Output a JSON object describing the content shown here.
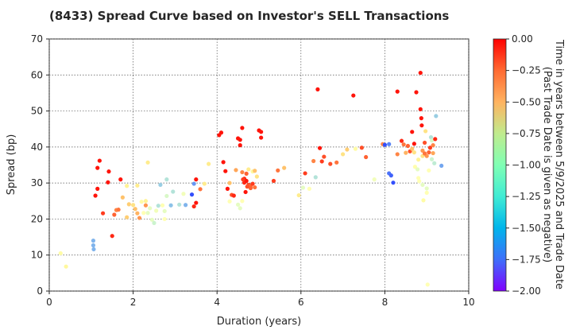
{
  "chart_data": {
    "type": "scatter",
    "title": "(8433)   Spread Curve based on Investor's SELL Transactions",
    "xlabel": "Duration (years)",
    "ylabel": "Spread (bp)",
    "xlim": [
      0,
      10
    ],
    "ylim": [
      0,
      70
    ],
    "xticks": [
      "0",
      "2",
      "4",
      "6",
      "8",
      "10"
    ],
    "yticks": [
      "0",
      "10",
      "20",
      "30",
      "40",
      "50",
      "60",
      "70"
    ],
    "grid": true,
    "colorbar": {
      "label_line1": "Time in years between 5/9/2025 and Trade Date",
      "label_line2": "(Past Trade Date is given as negative)",
      "range": [
        -2.0,
        0.0
      ],
      "colormap": "rainbow",
      "ticks": [
        "0.00",
        "−0.25",
        "−0.50",
        "−0.75",
        "−1.00",
        "−1.25",
        "−1.50",
        "−1.75",
        "−2.00"
      ]
    },
    "points": [
      [
        0.27,
        10.5,
        -0.9
      ],
      [
        0.4,
        6.8,
        -0.85
      ],
      [
        1.05,
        14,
        -1.5
      ],
      [
        1.05,
        12.7,
        -1.5
      ],
      [
        1.06,
        11.6,
        -1.5
      ],
      [
        1.1,
        26.5,
        -0.05
      ],
      [
        1.15,
        28.4,
        -0.05
      ],
      [
        1.15,
        34.2,
        -0.05
      ],
      [
        1.2,
        36.2,
        -0.05
      ],
      [
        1.28,
        21.6,
        -0.15
      ],
      [
        1.4,
        30.2,
        -0.05
      ],
      [
        1.42,
        33.2,
        -0.05
      ],
      [
        1.5,
        15.3,
        -0.1
      ],
      [
        1.55,
        21.2,
        -0.25
      ],
      [
        1.6,
        22.5,
        -0.35
      ],
      [
        1.65,
        22.6,
        -0.3
      ],
      [
        1.7,
        31,
        -0.05
      ],
      [
        1.75,
        26,
        -0.55
      ],
      [
        1.85,
        20.5,
        -0.6
      ],
      [
        1.85,
        29.2,
        -0.8
      ],
      [
        1.9,
        24.1,
        -0.6
      ],
      [
        2.0,
        23.9,
        -0.7
      ],
      [
        2.05,
        22.8,
        -0.55
      ],
      [
        2.1,
        21.6,
        -0.5
      ],
      [
        2.1,
        29.3,
        -0.75
      ],
      [
        2.15,
        20.3,
        -0.4
      ],
      [
        2.2,
        24.8,
        -0.9
      ],
      [
        2.25,
        21.7,
        -1.0
      ],
      [
        2.3,
        23.8,
        -0.4
      ],
      [
        2.3,
        25,
        -0.8
      ],
      [
        2.35,
        21.7,
        -1.1
      ],
      [
        2.35,
        35.7,
        -0.75
      ],
      [
        2.4,
        23,
        -1.1
      ],
      [
        2.45,
        19.8,
        -1.1
      ],
      [
        2.5,
        18.9,
        -1.2
      ],
      [
        2.55,
        22.3,
        -1.05
      ],
      [
        2.6,
        23.7,
        -1.3
      ],
      [
        2.65,
        29.5,
        -1.4
      ],
      [
        2.7,
        23.8,
        -1.0
      ],
      [
        2.75,
        20,
        -1.0
      ],
      [
        2.75,
        22.2,
        -1.1
      ],
      [
        2.8,
        31,
        -1.3
      ],
      [
        2.8,
        26.4,
        -1.15
      ],
      [
        2.9,
        23.8,
        -1.45
      ],
      [
        2.95,
        27.6,
        -1.3
      ],
      [
        3.1,
        24,
        -1.3
      ],
      [
        3.2,
        27,
        -1.05
      ],
      [
        3.25,
        23.9,
        -1.5
      ],
      [
        3.4,
        26.8,
        -1.8
      ],
      [
        3.45,
        29.8,
        -1.6
      ],
      [
        3.45,
        23.5,
        -0.1
      ],
      [
        3.5,
        24.5,
        -0.05
      ],
      [
        3.5,
        31,
        -0.05
      ],
      [
        3.6,
        28.3,
        -0.3
      ],
      [
        3.7,
        29.8,
        -0.75
      ],
      [
        3.8,
        35.3,
        -0.75
      ],
      [
        4.05,
        43.3,
        -0.05
      ],
      [
        4.1,
        44,
        -0.05
      ],
      [
        4.15,
        35.8,
        -0.05
      ],
      [
        4.2,
        33.3,
        -0.05
      ],
      [
        4.25,
        28.4,
        -0.05
      ],
      [
        4.3,
        24.9,
        -1.0
      ],
      [
        4.3,
        30,
        -0.55
      ],
      [
        4.35,
        26.7,
        -0.2
      ],
      [
        4.4,
        26.5,
        -0.1
      ],
      [
        4.45,
        33.6,
        -0.45
      ],
      [
        4.5,
        42.4,
        -0.05
      ],
      [
        4.5,
        24,
        -1.1
      ],
      [
        4.55,
        42,
        -0.05
      ],
      [
        4.55,
        40.5,
        -0.05
      ],
      [
        4.55,
        23,
        -1.1
      ],
      [
        4.6,
        33,
        -0.35
      ],
      [
        4.6,
        45.3,
        -0.05
      ],
      [
        4.6,
        25,
        -1.0
      ],
      [
        4.65,
        31.2,
        -0.1
      ],
      [
        4.65,
        30.1,
        -0.1
      ],
      [
        4.7,
        32.6,
        -0.25
      ],
      [
        4.7,
        30.6,
        -0.05
      ],
      [
        4.75,
        29.5,
        -0.2
      ],
      [
        4.75,
        33.8,
        -0.75
      ],
      [
        4.8,
        29.2,
        -0.25
      ],
      [
        4.8,
        28.6,
        -0.25
      ],
      [
        4.85,
        29.8,
        -0.15
      ],
      [
        4.85,
        33.2,
        -0.85
      ],
      [
        4.9,
        28.8,
        -0.3
      ],
      [
        4.9,
        33.4,
        -0.55
      ],
      [
        4.95,
        31.8,
        -0.7
      ],
      [
        5.0,
        44.6,
        -0.05
      ],
      [
        5.05,
        44.2,
        -0.05
      ],
      [
        5.05,
        42.6,
        -0.05
      ],
      [
        5.35,
        30.6,
        -0.15
      ],
      [
        5.45,
        33.5,
        -0.3
      ],
      [
        5.6,
        34.2,
        -0.55
      ],
      [
        5.95,
        26.6,
        -0.75
      ],
      [
        6.05,
        28.7,
        -1.1
      ],
      [
        6.1,
        32.7,
        -0.15
      ],
      [
        6.2,
        28.4,
        -1.0
      ],
      [
        6.3,
        36.1,
        -0.35
      ],
      [
        6.35,
        31.6,
        -1.3
      ],
      [
        6.4,
        56,
        -0.05
      ],
      [
        6.45,
        39.7,
        -0.05
      ],
      [
        6.5,
        36,
        -0.15
      ],
      [
        6.55,
        37.3,
        -0.2
      ],
      [
        6.7,
        35.3,
        -0.2
      ],
      [
        6.85,
        35.7,
        -0.3
      ],
      [
        7.0,
        38,
        -0.7
      ],
      [
        7.1,
        39.3,
        -0.6
      ],
      [
        7.25,
        54.3,
        -0.05
      ],
      [
        7.3,
        39.5,
        -0.9
      ],
      [
        7.45,
        39.8,
        -0.2
      ],
      [
        7.55,
        37.2,
        -0.25
      ],
      [
        7.75,
        31,
        -1.05
      ],
      [
        7.95,
        40.8,
        -0.35
      ],
      [
        8.0,
        40.6,
        -1.8
      ],
      [
        8.1,
        40.8,
        -1.65
      ],
      [
        8.1,
        32.7,
        -1.7
      ],
      [
        8.15,
        32.1,
        -1.75
      ],
      [
        8.2,
        30.1,
        -1.8
      ],
      [
        8.3,
        38,
        -0.35
      ],
      [
        8.3,
        55.4,
        -0.05
      ],
      [
        8.4,
        41.7,
        -0.1
      ],
      [
        8.45,
        40.7,
        -0.3
      ],
      [
        8.5,
        38.4,
        -0.5
      ],
      [
        8.55,
        40.3,
        -0.25
      ],
      [
        8.6,
        38.8,
        -0.2
      ],
      [
        8.65,
        39.5,
        -0.55
      ],
      [
        8.65,
        44.2,
        -0.05
      ],
      [
        8.7,
        40.9,
        -0.05
      ],
      [
        8.7,
        38.5,
        -0.7
      ],
      [
        8.72,
        34.5,
        -0.95
      ],
      [
        8.75,
        55.2,
        -0.05
      ],
      [
        8.78,
        33.8,
        -1.1
      ],
      [
        8.8,
        36.5,
        -0.8
      ],
      [
        8.8,
        31.4,
        -1.0
      ],
      [
        8.82,
        30.5,
        -1.0
      ],
      [
        8.85,
        60.6,
        -0.05
      ],
      [
        8.85,
        50.5,
        -0.05
      ],
      [
        8.87,
        48,
        -0.05
      ],
      [
        8.88,
        46,
        -0.05
      ],
      [
        8.9,
        39,
        -0.4
      ],
      [
        8.9,
        37.5,
        -0.7
      ],
      [
        8.9,
        29.5,
        -1.1
      ],
      [
        8.92,
        25.2,
        -0.9
      ],
      [
        8.95,
        41.2,
        -0.2
      ],
      [
        8.97,
        44.4,
        -0.7
      ],
      [
        9.0,
        37.5,
        -0.4
      ],
      [
        9.0,
        28.5,
        -1.1
      ],
      [
        9.0,
        27.3,
        -1.0
      ],
      [
        9.02,
        1.8,
        -1.0
      ],
      [
        9.05,
        38.5,
        -0.25
      ],
      [
        9.05,
        33.5,
        -1.0
      ],
      [
        9.08,
        39.8,
        -0.15
      ],
      [
        9.1,
        42.7,
        -1.3
      ],
      [
        9.12,
        41.8,
        -1.15
      ],
      [
        9.12,
        36.6,
        -1.2
      ],
      [
        9.15,
        40.5,
        -0.35
      ],
      [
        9.15,
        38.3,
        -0.45
      ],
      [
        9.18,
        35.5,
        -1.25
      ],
      [
        9.2,
        42.2,
        -0.1
      ],
      [
        9.22,
        48.6,
        -1.4
      ],
      [
        9.35,
        34.8,
        -1.55
      ],
      [
        4.62,
        31,
        -0.15
      ],
      [
        4.72,
        29,
        -0.2
      ],
      [
        4.68,
        27.5,
        -0.05
      ],
      [
        8.95,
        38.2,
        -0.3
      ]
    ]
  }
}
